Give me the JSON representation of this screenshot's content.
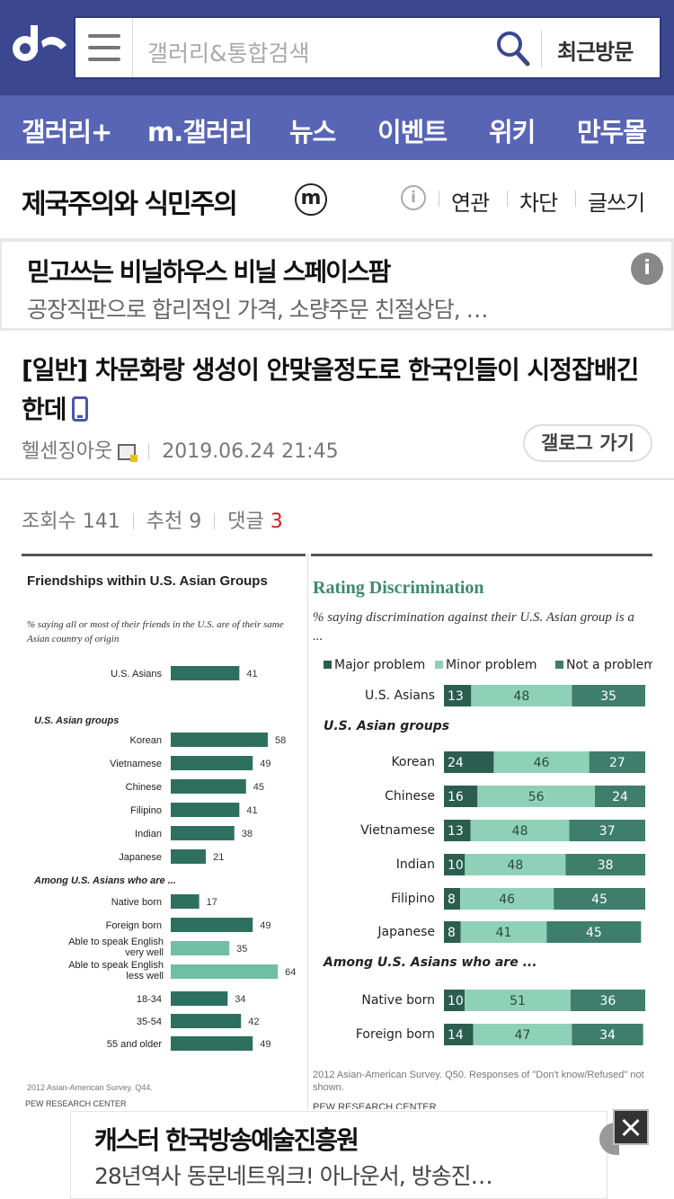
{
  "header": {
    "logo": "dc-logo",
    "search_placeholder": "갤러리&통합검색",
    "recent_label": "최근방문"
  },
  "nav": [
    "갤러리+",
    "m.갤러리",
    "뉴스",
    "이벤트",
    "위키",
    "만두몰"
  ],
  "gallery": {
    "title": "제국주의와 식민주의",
    "badge": "ⓜ",
    "info": "i",
    "links": [
      "연관",
      "차단",
      "글쓰기"
    ]
  },
  "ad_top": {
    "headline": "믿고쓰는 비닐하우스 비닐 스페이스팜",
    "sub": "공장직판으로 합리적인 가격, 소량주문 친절상담, …",
    "info": "i"
  },
  "post": {
    "title": "[일반] 차문화랑 생성이 안맞을정도로 한국인들이 시정잡배긴 한데",
    "author": "헬센징아웃",
    "datetime": "2019.06.24 21:45",
    "gallog_button": "갤로그 가기"
  },
  "stats": {
    "views_label": "조회수",
    "views": "141",
    "recommend_label": "추천",
    "recommend": "9",
    "comments_label": "댓글",
    "comments": "3"
  },
  "chart_data": [
    {
      "type": "bar",
      "title": "Friendships within U.S. Asian Groups",
      "subtitle": "% saying all or most of their friends in the U.S. are of their same Asian country of origin",
      "groups": [
        {
          "label": "",
          "categories": [
            "U.S. Asians"
          ],
          "values": [
            41
          ]
        },
        {
          "label": "U.S. Asian groups",
          "categories": [
            "Korean",
            "Vietnamese",
            "Chinese",
            "Filipino",
            "Indian",
            "Japanese"
          ],
          "values": [
            58,
            49,
            45,
            41,
            38,
            21
          ]
        },
        {
          "label": "Among U.S. Asians who are ...",
          "categories": [
            "Native born",
            "Foreign born",
            "Able to speak English very well",
            "Able to speak English less well"
          ],
          "values": [
            17,
            49,
            35,
            64
          ]
        },
        {
          "label": "",
          "categories": [
            "18-34",
            "35-54",
            "55 and older"
          ],
          "values": [
            34,
            42,
            49
          ]
        }
      ],
      "note": "2012 Asian-American Survey. Q44.",
      "source": "PEW RESEARCH CENTER",
      "colors": {
        "dark": "#2e7060",
        "light": "#6fbfa5"
      }
    },
    {
      "type": "bar",
      "stacked": true,
      "title": "Rating Discrimination",
      "subtitle": "% saying discrimination against their U.S. Asian group is a ...",
      "series_names": [
        "Major problem",
        "Minor problem",
        "Not a problem"
      ],
      "colors": [
        "#2b5e4e",
        "#8fd1b8",
        "#3e7e6a"
      ],
      "groups": [
        {
          "label": "",
          "rows": [
            {
              "category": "U.S. Asians",
              "values": [
                13,
                48,
                35
              ]
            }
          ]
        },
        {
          "label": "U.S. Asian groups",
          "rows": [
            {
              "category": "Korean",
              "values": [
                24,
                46,
                27
              ]
            },
            {
              "category": "Chinese",
              "values": [
                16,
                56,
                24
              ]
            },
            {
              "category": "Vietnamese",
              "values": [
                13,
                48,
                37
              ]
            },
            {
              "category": "Indian",
              "values": [
                10,
                48,
                38
              ]
            },
            {
              "category": "Filipino",
              "values": [
                8,
                46,
                45
              ]
            },
            {
              "category": "Japanese",
              "values": [
                8,
                41,
                45
              ]
            }
          ]
        },
        {
          "label": "Among U.S. Asians who are ...",
          "rows": [
            {
              "category": "Native born",
              "values": [
                10,
                51,
                36
              ]
            },
            {
              "category": "Foreign born",
              "values": [
                14,
                47,
                34
              ]
            }
          ]
        }
      ],
      "note": "2012 Asian-American Survey. Q50. Responses of \"Don't know/Refused\" not shown.",
      "source": "PEW RESEARCH CENTER"
    }
  ],
  "ad_bottom": {
    "headline": "캐스터 한국방송예술진흥원",
    "sub": "28년역사 동문네트워크! 아나운서, 방송진…"
  }
}
